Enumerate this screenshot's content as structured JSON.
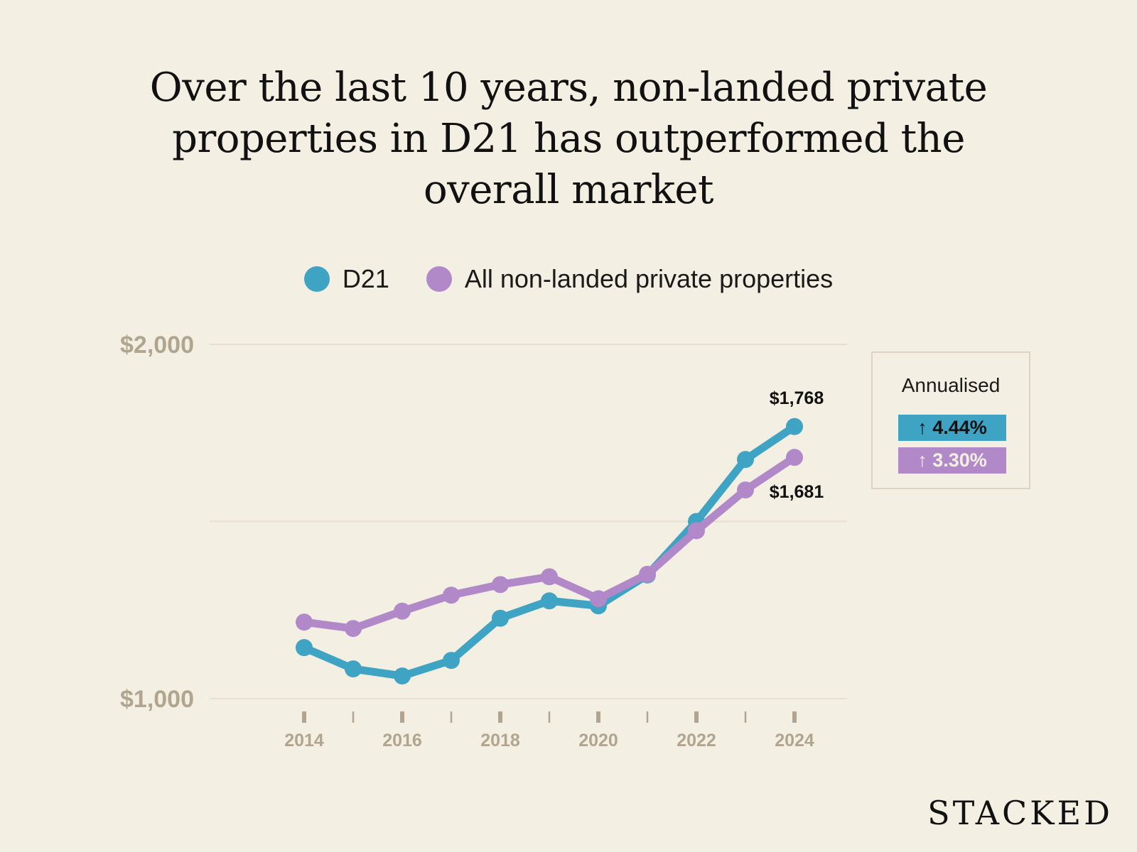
{
  "title_lines": [
    "Over the last 10 years, non-landed private",
    "properties in D21 has outperformed the",
    "overall market"
  ],
  "colors": {
    "background": "#f4efe3",
    "d21": "#3fa3c4",
    "all": "#b189c9",
    "axis_text": "#b2a58f",
    "grid": "#e8ddd0"
  },
  "chart_data": {
    "type": "line",
    "title": "Over the last 10 years, non-landed private properties in D21 has outperformed the overall market",
    "x": [
      2014,
      2015,
      2016,
      2017,
      2018,
      2019,
      2020,
      2021,
      2022,
      2023,
      2024
    ],
    "x_tick_labels": [
      "2014",
      "2016",
      "2018",
      "2020",
      "2022",
      "2024"
    ],
    "y_tick_labels": [
      {
        "value": 2000,
        "label": "$2,000"
      },
      {
        "value": 1000,
        "label": "$1,000"
      }
    ],
    "gridlines": [
      2000,
      1500,
      1000
    ],
    "ylim": [
      1000,
      2000
    ],
    "series": [
      {
        "name": "D21",
        "key": "d21",
        "values": [
          1144,
          1084,
          1064,
          1108,
          1227,
          1276,
          1262,
          1349,
          1500,
          1675,
          1768
        ],
        "end_label": "$1,768",
        "annualised": "4.44%"
      },
      {
        "name": "All non-landed private properties",
        "key": "all",
        "values": [
          1216,
          1198,
          1247,
          1292,
          1322,
          1344,
          1282,
          1351,
          1474,
          1589,
          1681
        ],
        "end_label": "$1,681",
        "annualised": "3.30%"
      }
    ],
    "legend": {
      "position": "top-center"
    }
  },
  "annualised": {
    "title": "Annualised",
    "d21_value": "4.44%",
    "all_value": "3.30%",
    "arrow": "↑"
  },
  "logo": "STACKED"
}
